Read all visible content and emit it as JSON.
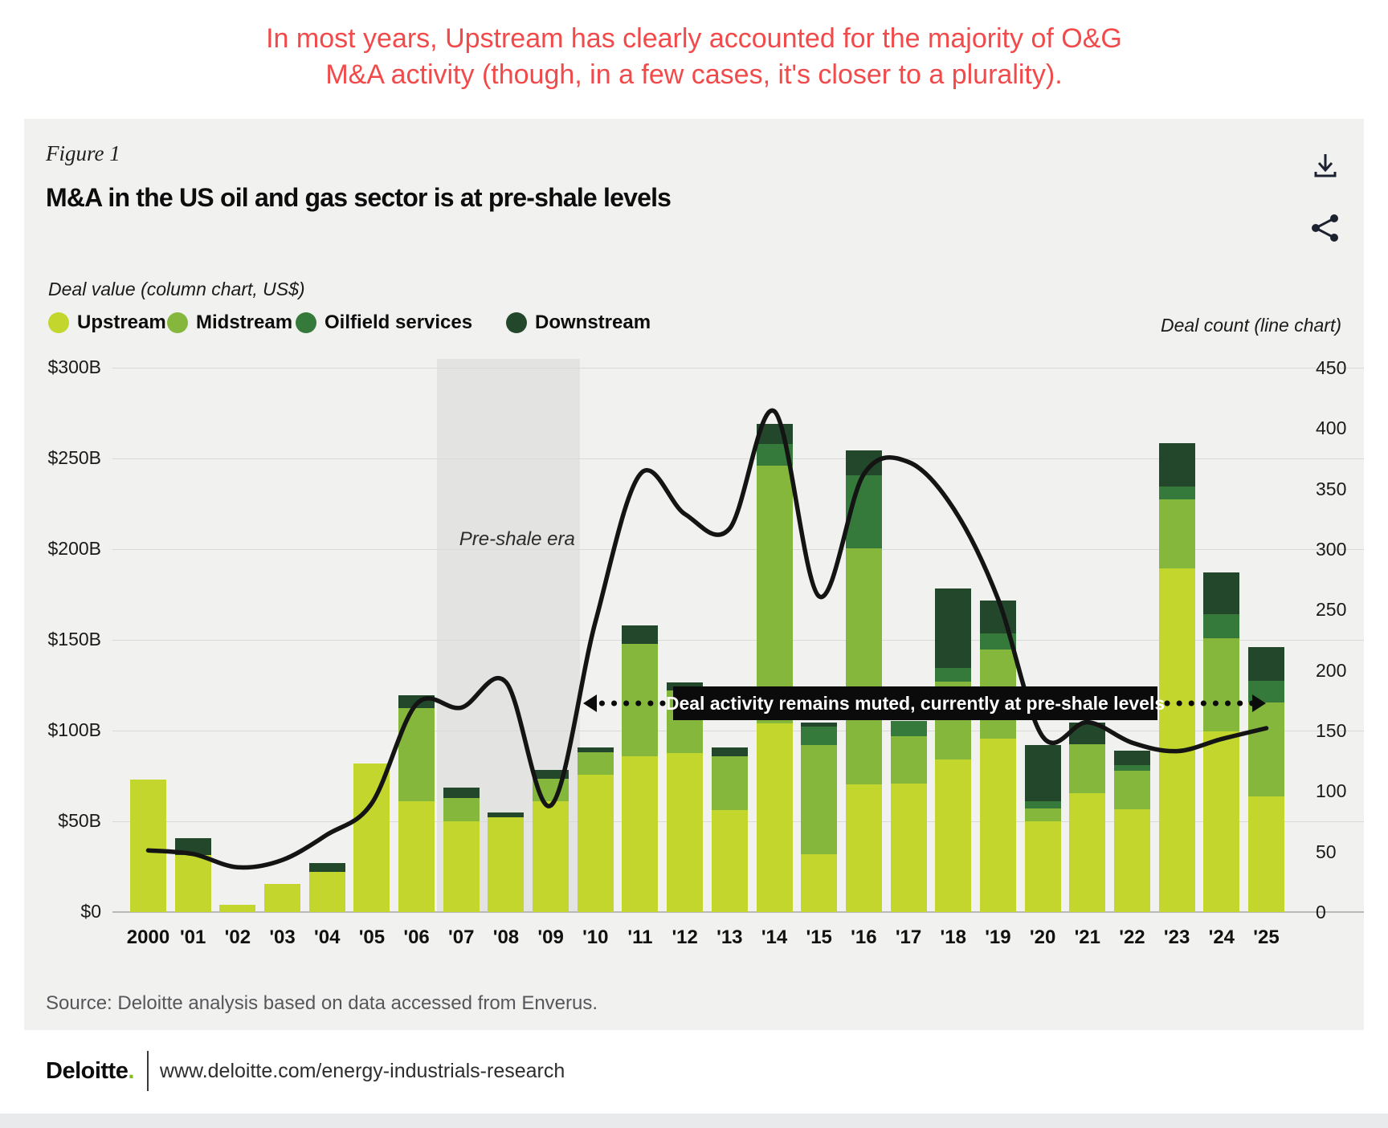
{
  "headline": {
    "line1": "In most years, Upstream has clearly accounted for the majority of O&G",
    "line2": "M&A activity (though, in a few cases, it's closer to a plurality)."
  },
  "figure_label": "Figure 1",
  "title": "M&A in the US oil and gas sector is at pre-shale levels",
  "legend": {
    "caption": "Deal value (column chart, US$)",
    "right_caption": "Deal count (line chart)",
    "items": [
      {
        "label": "Upstream",
        "color": "#c3d62d"
      },
      {
        "label": "Midstream",
        "color": "#86b73d"
      },
      {
        "label": "Oilfield services",
        "color": "#35793b"
      },
      {
        "label": "Downstream",
        "color": "#23472a"
      }
    ]
  },
  "chart_data": {
    "type": "combo: stacked-bar + line",
    "title": "M&A in the US oil and gas sector is at pre-shale levels",
    "categories": [
      "2000",
      "'01",
      "'02",
      "'03",
      "'04",
      "'05",
      "'06",
      "'07",
      "'08",
      "'09",
      "'10",
      "'11",
      "'12",
      "'13",
      "'14",
      "'15",
      "'16",
      "'17",
      "'18",
      "'19",
      "'20",
      "'21",
      "'22",
      "'23",
      "'24",
      "'25"
    ],
    "series": [
      {
        "name": "Upstream",
        "color": "#c3d62d",
        "values": [
          73,
          31.5,
          4,
          15.5,
          22,
          82,
          61,
          50,
          52,
          61,
          75.5,
          86,
          87.5,
          56,
          104,
          32,
          70.5,
          71,
          84,
          95.5,
          50,
          65.5,
          56.5,
          189.5,
          99.5,
          63.5
        ]
      },
      {
        "name": "Midstream",
        "color": "#86b73d",
        "values": [
          0,
          0,
          0,
          0,
          0,
          0,
          51.5,
          13,
          0,
          12.5,
          12.5,
          62,
          34.5,
          30,
          142,
          60,
          130,
          26,
          43,
          49,
          7,
          27,
          21.5,
          38,
          51.5,
          52
        ]
      },
      {
        "name": "Oilfield services",
        "color": "#35793b",
        "values": [
          0,
          0,
          0,
          0,
          0,
          0,
          0,
          0,
          0,
          0,
          0,
          0,
          0,
          0,
          12,
          10,
          40,
          8.5,
          7.5,
          9,
          4,
          0,
          3,
          7,
          13,
          12
        ]
      },
      {
        "name": "Downstream",
        "color": "#23472a",
        "values": [
          0,
          9,
          0,
          0,
          5,
          0,
          7,
          5.5,
          3,
          5,
          2.5,
          10,
          4.5,
          4.5,
          11,
          2.5,
          14,
          0,
          44,
          18,
          31,
          12,
          8,
          24,
          23,
          18.5
        ]
      }
    ],
    "line_series": {
      "name": "Deal count",
      "color": "#141414",
      "values": [
        51,
        48,
        37,
        43,
        64,
        90,
        172,
        169,
        190,
        88,
        240,
        362,
        329,
        317,
        414,
        261,
        362,
        372,
        334,
        259,
        145,
        157,
        140,
        133,
        143,
        152
      ]
    },
    "ylim_left": [
      0,
      300
    ],
    "yticks_left": [
      "$300B",
      "$250B",
      "$200B",
      "$150B",
      "$100B",
      "$50B",
      "$0"
    ],
    "ylim_right": [
      0,
      450
    ],
    "yticks_right": [
      "450",
      "400",
      "350",
      "300",
      "250",
      "200",
      "150",
      "100",
      "50",
      "0"
    ],
    "grid": "horizontal",
    "band": {
      "label": "Pre-shale era",
      "from_category": "'07",
      "to_category": "'09"
    },
    "callout": {
      "text": "Deal activity remains muted, currently at pre-shale levels"
    }
  },
  "source": "Source: Deloitte analysis based on data accessed from Enverus.",
  "footer": {
    "brand": "Deloitte",
    "brand_dot": ".",
    "url": "www.deloitte.com/energy-industrials-research"
  },
  "colors": {
    "headline_red": "#f24a4a",
    "card_bg": "#f1f1ef",
    "band_bg": "#e3e3e1",
    "deloitte_green": "#86bc25",
    "line_black": "#141414"
  }
}
